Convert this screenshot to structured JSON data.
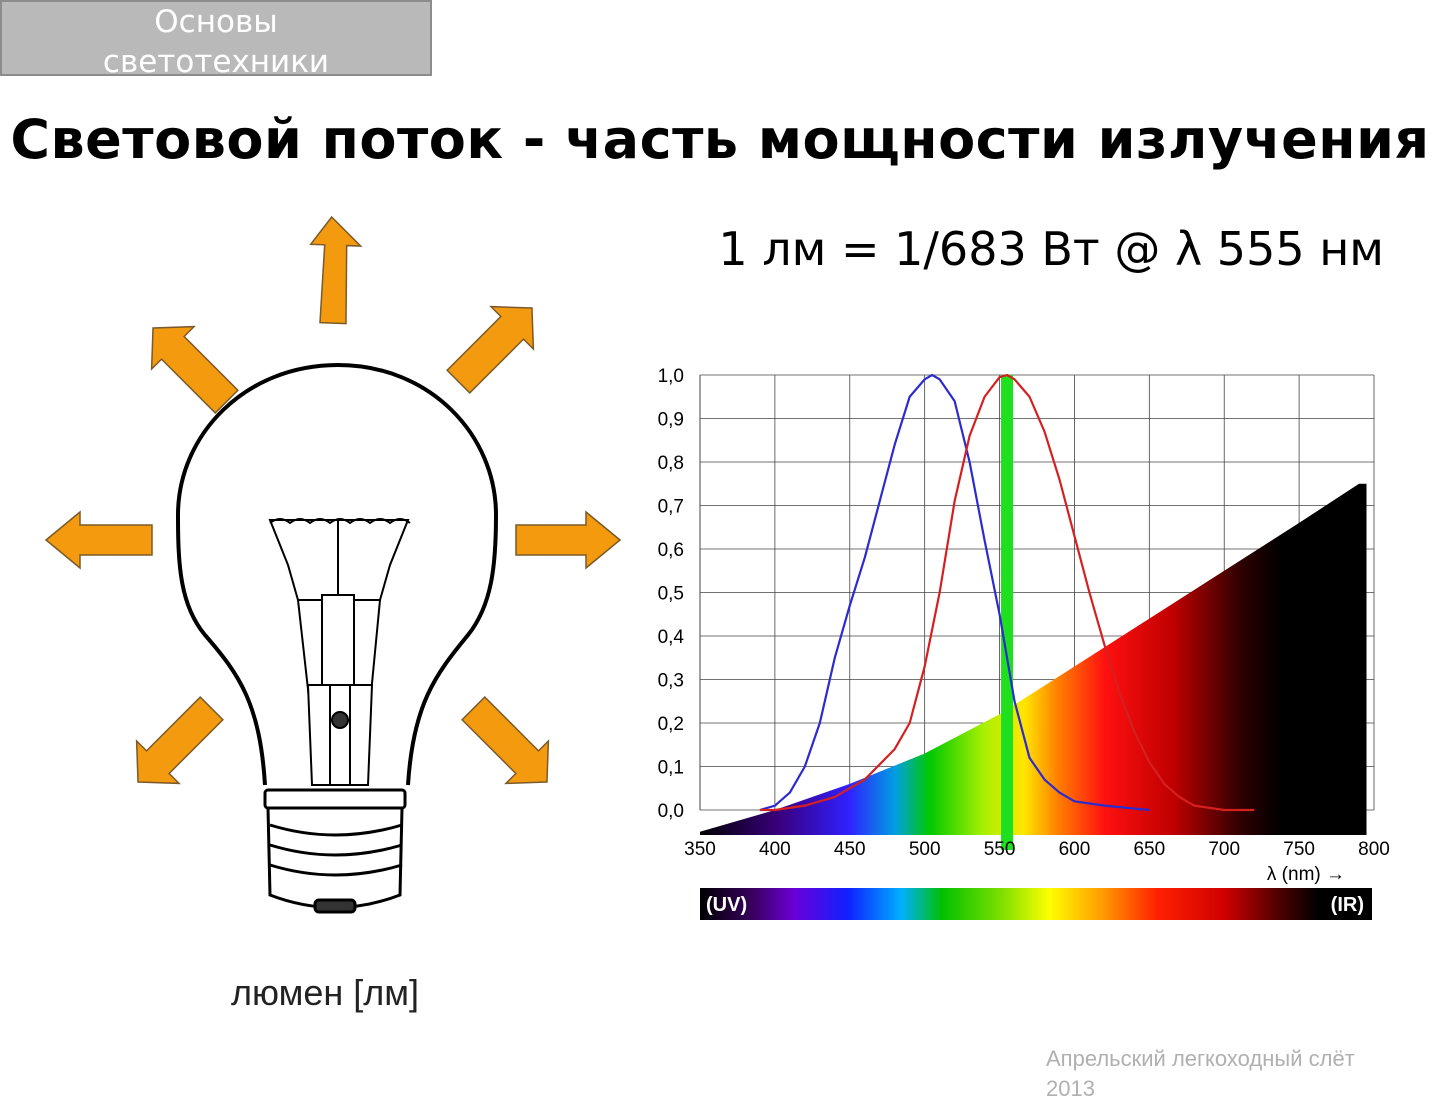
{
  "header": {
    "section_line1": "Основы",
    "section_line2": "светотехники"
  },
  "title": "Световой поток - часть мощности излучения",
  "formula": "1 лм = 1/683 Вт @ λ 555 нм",
  "bulb": {
    "caption": "люмен [лм]",
    "arrow_color": "#f39a0e",
    "arrow_icon": "orange-arrow-icon"
  },
  "chart_data": {
    "type": "line",
    "x_tick_labels": [
      "350",
      "400",
      "450",
      "500",
      "550",
      "600",
      "650",
      "700",
      "750",
      "800"
    ],
    "y_tick_labels": [
      "0,0",
      "0,1",
      "0,2",
      "0,3",
      "0,4",
      "0,5",
      "0,6",
      "0,7",
      "0,8",
      "0,9",
      "1,0"
    ],
    "xlim": [
      350,
      800
    ],
    "ylim": [
      0,
      1.0
    ],
    "xlabel": "λ (nm) →",
    "grid": true,
    "series": [
      {
        "color": "#2b2bd0",
        "x": [
          390,
          400,
          410,
          420,
          430,
          440,
          450,
          460,
          470,
          480,
          490,
          500,
          505,
          510,
          520,
          530,
          540,
          550,
          555,
          560,
          570,
          580,
          590,
          600,
          620,
          650
        ],
        "y": [
          0.0,
          0.01,
          0.04,
          0.1,
          0.2,
          0.35,
          0.47,
          0.58,
          0.71,
          0.84,
          0.95,
          0.99,
          1.0,
          0.99,
          0.94,
          0.8,
          0.62,
          0.45,
          0.35,
          0.25,
          0.12,
          0.07,
          0.04,
          0.02,
          0.01,
          0.0
        ]
      },
      {
        "color": "#d42020",
        "x": [
          390,
          400,
          420,
          440,
          460,
          480,
          490,
          500,
          510,
          520,
          530,
          540,
          550,
          555,
          560,
          570,
          580,
          590,
          600,
          610,
          620,
          630,
          640,
          650,
          660,
          670,
          680,
          700,
          720
        ],
        "y": [
          0.0,
          0.0,
          0.01,
          0.03,
          0.07,
          0.14,
          0.2,
          0.33,
          0.5,
          0.71,
          0.86,
          0.95,
          0.995,
          1.0,
          0.99,
          0.95,
          0.87,
          0.76,
          0.63,
          0.5,
          0.38,
          0.27,
          0.18,
          0.11,
          0.06,
          0.03,
          0.01,
          0.0,
          0.0
        ]
      },
      {
        "color": "#000000",
        "x": [
          350,
          400,
          450,
          500,
          550,
          600,
          650,
          700,
          750,
          790,
          795
        ],
        "y": [
          -0.05,
          0.0,
          0.06,
          0.13,
          0.22,
          0.33,
          0.44,
          0.55,
          0.66,
          0.75,
          0.75
        ]
      }
    ],
    "marker_wavelength": 555,
    "marker_color": "#1fe01f",
    "spectrum_bar": {
      "left_label": "(UV)",
      "right_label": "(IR)"
    }
  },
  "footer": {
    "line1": "Апрельский легкоходный слёт",
    "line2": "2013"
  }
}
